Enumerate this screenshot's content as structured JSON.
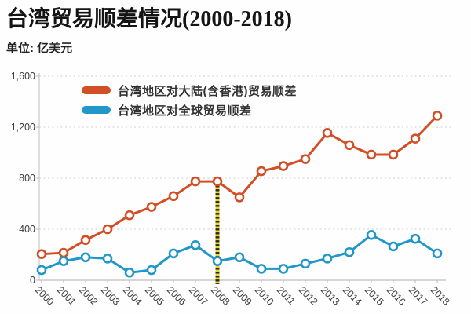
{
  "header": {
    "title": "台湾贸易顺差情况(2000-2018)",
    "unit_label": "单位: 亿美元"
  },
  "chart_data": {
    "type": "line",
    "title": "台湾贸易顺差情况(2000-2018)",
    "unit": "亿美元",
    "x": [
      "2000",
      "2001",
      "2002",
      "2003",
      "2004",
      "2005",
      "2006",
      "2007",
      "2008",
      "2009",
      "2010",
      "2011",
      "2012",
      "2013",
      "2014",
      "2015",
      "2016",
      "2017",
      "2018"
    ],
    "series": [
      {
        "name": "台湾地区对大陆(含香港)贸易顺差",
        "color": "#d24e24",
        "values": [
          205,
          215,
          315,
          400,
          510,
          575,
          660,
          775,
          775,
          650,
          855,
          895,
          950,
          1155,
          1060,
          985,
          985,
          1110,
          1290
        ]
      },
      {
        "name": "台湾地区对全球贸易顺差",
        "color": "#2197c9",
        "values": [
          80,
          150,
          180,
          170,
          60,
          80,
          210,
          275,
          150,
          180,
          90,
          90,
          130,
          170,
          220,
          355,
          265,
          325,
          210
        ]
      }
    ],
    "ylim": [
      0,
      1600
    ],
    "yticks": [
      0,
      400,
      800,
      1200,
      1600
    ],
    "ytick_labels": [
      "0",
      "400",
      "800",
      "1,200",
      "1,600"
    ],
    "grid": "horizontal-dotted",
    "legend_position": "inside-top-left",
    "annotation": {
      "type": "vertical-dotted-line",
      "at_x": "2008",
      "colors": [
        "#2a2a05",
        "#e5d238"
      ]
    },
    "marker": "open-circle"
  }
}
